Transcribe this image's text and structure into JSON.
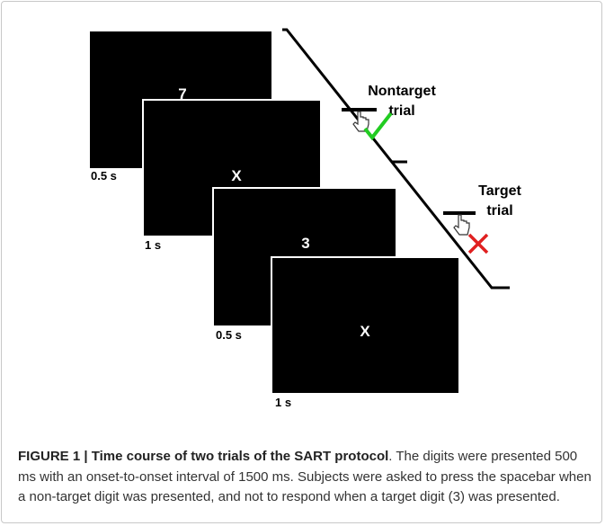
{
  "figure": {
    "screens": [
      {
        "stimulus": "7",
        "duration": "0.5 s"
      },
      {
        "stimulus": "X",
        "duration": "1 s"
      },
      {
        "stimulus": "3",
        "duration": "0.5 s"
      },
      {
        "stimulus": "X",
        "duration": "1 s"
      }
    ],
    "annotations": [
      {
        "line1": "Nontarget",
        "line2": "trial"
      },
      {
        "line1": "Target",
        "line2": "trial"
      }
    ]
  },
  "caption": {
    "label": "FIGURE 1 | Time course of two trials of the SART protocol",
    "text": ". The digits were presented 500 ms with an onset-to-onset interval of 1500 ms. Subjects were asked to press the spacebar when a non-target digit was presented, and not to respond when a target digit (3) was presented."
  }
}
